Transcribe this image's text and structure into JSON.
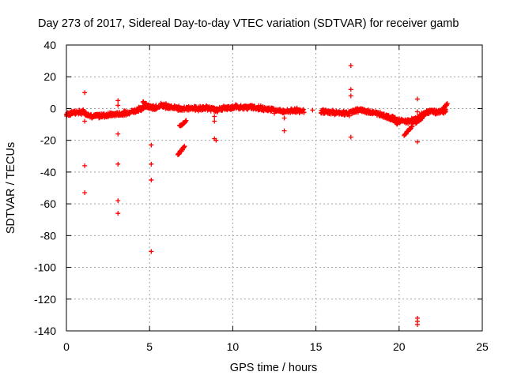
{
  "chart_data": {
    "type": "scatter",
    "title": "Day 273 of 2017, Sidereal Day-to-day VTEC variation (SDTVAR) for receiver gamb",
    "xlabel": "GPS time / hours",
    "ylabel": "SDTVAR / TECUs",
    "xlim": [
      0,
      25
    ],
    "ylim": [
      -140,
      40
    ],
    "xticks": [
      0,
      5,
      10,
      15,
      20,
      25
    ],
    "yticks": [
      -140,
      -120,
      -100,
      -80,
      -60,
      -40,
      -20,
      0,
      20,
      40
    ],
    "grid": true,
    "marker": "+",
    "series": [
      {
        "name": "SDTVAR",
        "color": "#ff0000",
        "trend": {
          "x": [
            0,
            0.5,
            1.0,
            1.3,
            1.6,
            2.0,
            2.5,
            3.0,
            3.5,
            4.0,
            4.5,
            4.8,
            5.0,
            5.3,
            5.6,
            6.0,
            6.5,
            7.0,
            7.5,
            8.0,
            8.5,
            9.0,
            9.4,
            9.8,
            10.2,
            10.6,
            11.0,
            11.4,
            11.8,
            12.2,
            12.6,
            13.0,
            13.4,
            13.8,
            14.2,
            15.4,
            15.8,
            16.2,
            16.6,
            17.0,
            17.4,
            17.8,
            18.2,
            18.6,
            19.0,
            19.4,
            19.8,
            20.2,
            20.6,
            21.0,
            21.4,
            21.8,
            22.2,
            22.6,
            22.8
          ],
          "y": [
            -3.5,
            -2.5,
            -2.0,
            -4.0,
            -5.0,
            -4.5,
            -4.0,
            -3.5,
            -3.0,
            -1.5,
            0,
            2.0,
            1.0,
            0,
            2.0,
            1.5,
            0.5,
            -0.5,
            0.5,
            0,
            0.5,
            -1.0,
            0,
            0.5,
            1.0,
            0.5,
            1.0,
            0.5,
            0,
            -0.5,
            -1.0,
            -2.0,
            -1.5,
            -1.0,
            -1.5,
            -2.0,
            -2.5,
            -2.5,
            -3.0,
            -3.0,
            -1.0,
            -1.0,
            -2.0,
            -3.0,
            -4.0,
            -5.5,
            -7.0,
            -8.0,
            -8.0,
            -7.0,
            -4.0,
            -2.0,
            -2.0,
            -2.0,
            -1.5
          ]
        },
        "gaps": [
          [
            14.3,
            15.3
          ]
        ],
        "clusters": [
          {
            "x0": 4.6,
            "x1": 5.2,
            "y0": 4,
            "y1": 0
          },
          {
            "x0": 6.7,
            "x1": 7.1,
            "y0": -29,
            "y1": -24
          },
          {
            "x0": 6.8,
            "x1": 7.2,
            "y0": -11,
            "y1": -8
          },
          {
            "x0": 19.6,
            "x1": 19.9,
            "y0": -5,
            "y1": -10
          },
          {
            "x0": 20.3,
            "x1": 20.8,
            "y0": -17,
            "y1": -11
          },
          {
            "x0": 21.2,
            "x1": 21.8,
            "y0": -8,
            "y1": -1
          },
          {
            "x0": 21.0,
            "x1": 21.4,
            "y0": -9,
            "y1": -5
          },
          {
            "x0": 22.5,
            "x1": 22.9,
            "y0": -2,
            "y1": 3
          }
        ],
        "outliers": [
          {
            "x": 1.1,
            "y": 10
          },
          {
            "x": 1.1,
            "y": -8
          },
          {
            "x": 1.1,
            "y": -36
          },
          {
            "x": 1.1,
            "y": -53
          },
          {
            "x": 3.1,
            "y": 5
          },
          {
            "x": 3.1,
            "y": 2
          },
          {
            "x": 3.1,
            "y": -16
          },
          {
            "x": 3.1,
            "y": -35
          },
          {
            "x": 3.1,
            "y": -58
          },
          {
            "x": 3.1,
            "y": -66
          },
          {
            "x": 5.1,
            "y": -23
          },
          {
            "x": 5.1,
            "y": -35
          },
          {
            "x": 5.1,
            "y": -45
          },
          {
            "x": 5.1,
            "y": -90
          },
          {
            "x": 8.9,
            "y": -5
          },
          {
            "x": 8.9,
            "y": -8
          },
          {
            "x": 8.9,
            "y": -19
          },
          {
            "x": 9.0,
            "y": -20
          },
          {
            "x": 12.5,
            "y": -3
          },
          {
            "x": 13.1,
            "y": -6
          },
          {
            "x": 13.1,
            "y": -14
          },
          {
            "x": 14.8,
            "y": -1
          },
          {
            "x": 17.1,
            "y": 27
          },
          {
            "x": 17.1,
            "y": 12
          },
          {
            "x": 17.1,
            "y": 8
          },
          {
            "x": 17.1,
            "y": -18
          },
          {
            "x": 21.1,
            "y": 6
          },
          {
            "x": 21.1,
            "y": -2
          },
          {
            "x": 21.1,
            "y": -21
          },
          {
            "x": 21.1,
            "y": -132
          },
          {
            "x": 21.1,
            "y": -134
          },
          {
            "x": 21.1,
            "y": -136
          }
        ]
      }
    ]
  }
}
